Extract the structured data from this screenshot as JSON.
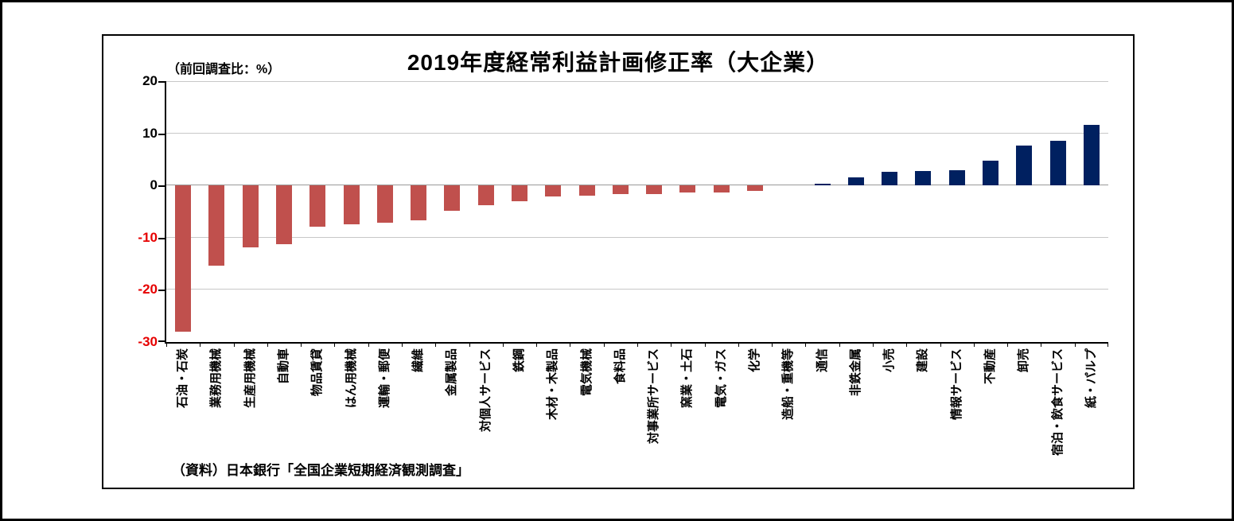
{
  "chart_data": {
    "type": "bar",
    "title": "2019年度経常利益計画修正率（大企業）",
    "unit_label": "（前回調査比：%）",
    "source": "（資料）日本銀行「全国企業短期経済観測調査」",
    "ylabel": "前回調査比（%）",
    "ylim": [
      -30,
      20
    ],
    "yticks": [
      20,
      10,
      0,
      -10,
      -20,
      -30
    ],
    "grid": true,
    "legend": "none",
    "categories": [
      "石油・石炭",
      "業務用機械",
      "生産用機械",
      "自動車",
      "物品賃貸",
      "はん用機械",
      "運輸・郵便",
      "繊維",
      "金属製品",
      "対個人サービス",
      "鉄鋼",
      "木材・木製品",
      "電気機械",
      "食料品",
      "対事業所サービス",
      "窯業・土石",
      "電気・ガス",
      "化学",
      "造船・重機等",
      "通信",
      "非鉄金属",
      "小売",
      "建設",
      "情報サービス",
      "不動産",
      "卸売",
      "宿泊・飲食サービス",
      "紙・パルプ"
    ],
    "values": [
      -28.0,
      -15.3,
      -11.8,
      -11.2,
      -7.9,
      -7.4,
      -7.2,
      -6.7,
      -4.9,
      -3.8,
      -3.0,
      -2.1,
      -1.9,
      -1.7,
      -1.6,
      -1.4,
      -1.3,
      -1.0,
      0.0,
      0.4,
      1.5,
      2.6,
      2.7,
      2.9,
      4.8,
      7.6,
      8.6,
      11.6
    ],
    "colors": {
      "negative_bar": "#C0504D",
      "positive_bar": "#002060",
      "negative_tick_label": "#E60000",
      "positive_tick_label": "#000000",
      "gridline": "#C8C8C8",
      "axis": "#000000"
    }
  }
}
